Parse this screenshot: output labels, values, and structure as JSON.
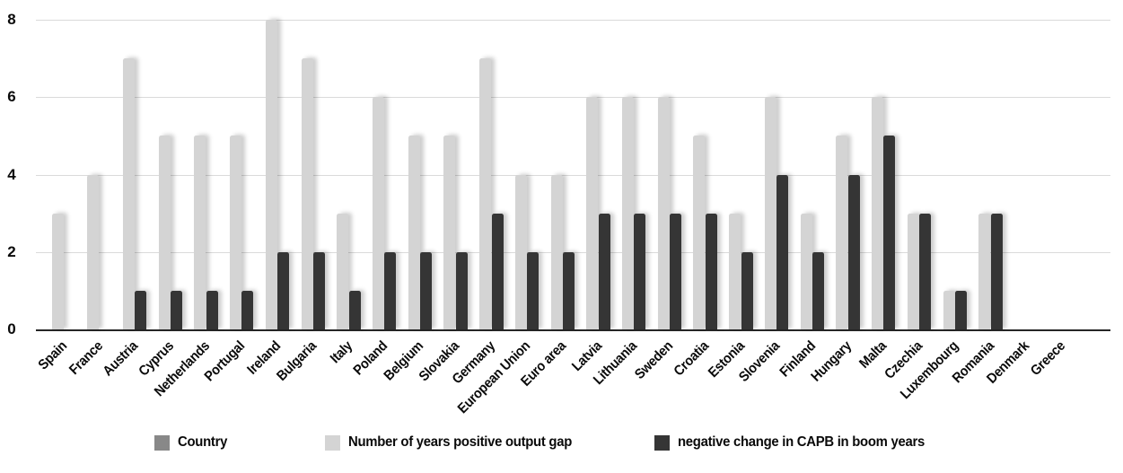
{
  "chart_data": {
    "type": "bar",
    "title": "",
    "xlabel": "",
    "ylabel": "",
    "categories": [
      "Spain",
      "France",
      "Austria",
      "Cyprus",
      "Netherlands",
      "Portugal",
      "Ireland",
      "Bulgaria",
      "Italy",
      "Poland",
      "Belgium",
      "Slovakia",
      "Germany",
      "European Union",
      "Euro area",
      "Latvia",
      "Lithuania",
      "Sweden",
      "Croatia",
      "Estonia",
      "Slovenia",
      "Finland",
      "Hungary",
      "Malta",
      "Czechia",
      "Luxembourg",
      "Romania",
      "Denmark",
      "Greece"
    ],
    "series": [
      {
        "name": "Number of years positive output gap",
        "color": "#d4d4d4",
        "values": [
          3,
          4,
          7,
          5,
          5,
          5,
          8,
          7,
          3,
          6,
          5,
          5,
          7,
          4,
          4,
          6,
          6,
          6,
          5,
          3,
          6,
          3,
          5,
          6,
          3,
          1,
          3,
          0,
          0
        ]
      },
      {
        "name": "negative change in CAPB in boom years",
        "color": "#353535",
        "values": [
          0,
          0,
          1,
          1,
          1,
          1,
          2,
          2,
          1,
          2,
          2,
          2,
          3,
          2,
          2,
          3,
          3,
          3,
          3,
          2,
          4,
          2,
          4,
          5,
          3,
          1,
          3,
          0,
          0
        ]
      }
    ],
    "legend": [
      {
        "label": "Country",
        "color": "#888888"
      },
      {
        "label": "Number of years positive output gap",
        "color": "#d4d4d4"
      },
      {
        "label": "negative change in CAPB in boom years",
        "color": "#353535"
      }
    ],
    "ylim": [
      0,
      8
    ],
    "yticks": [
      0,
      2,
      4,
      6,
      8
    ],
    "grid": true,
    "legend_position": "bottom"
  }
}
